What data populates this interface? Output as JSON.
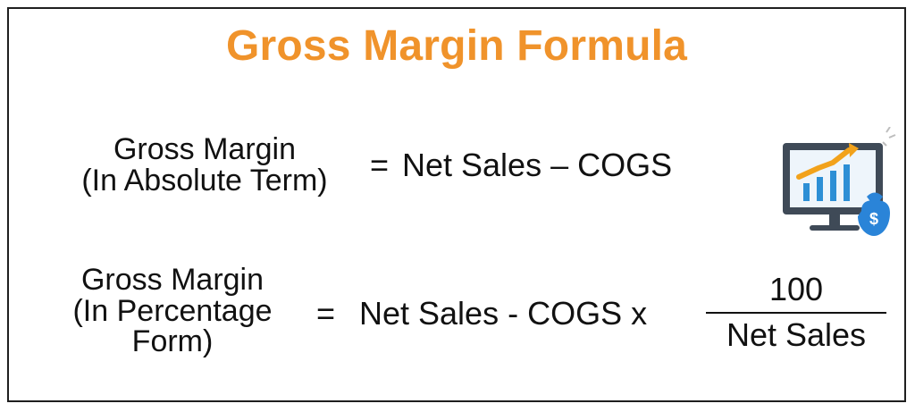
{
  "title": "Gross Margin Formula",
  "formula_absolute": {
    "label_line1": "Gross Margin",
    "label_line2": "(In Absolute Term)",
    "equals": "=",
    "expression": "Net Sales – COGS"
  },
  "formula_percentage": {
    "label_line1": "Gross Margin",
    "label_line2": "(In Percentage",
    "label_line3": "Form)",
    "equals": "=",
    "expression": "Net Sales - COGS x",
    "numerator": "100",
    "denominator": "Net Sales"
  },
  "icon": {
    "name": "monitor-chart-money-icon",
    "colors": {
      "monitor_frame": "#3f4a57",
      "screen": "#eef5fb",
      "bars": "#2d8fd5",
      "trend": "#f2a21b",
      "bag": "#2a84d8",
      "bag_symbol": "$"
    }
  },
  "colors": {
    "title": "#f0932b",
    "text": "#111111",
    "border": "#1f1f1f",
    "background": "#ffffff"
  }
}
